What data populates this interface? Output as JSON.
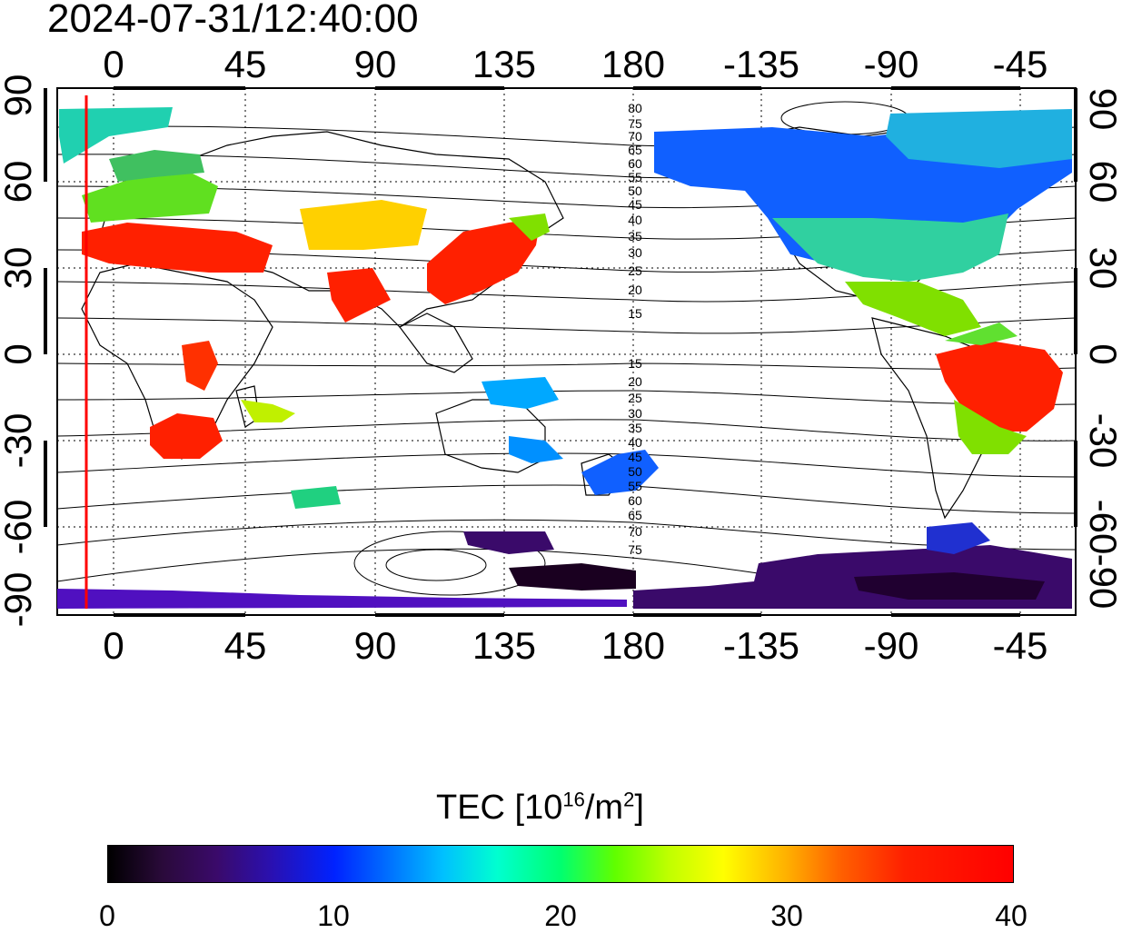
{
  "header": {
    "timestamp": "2024-07-31/12:40:00"
  },
  "map": {
    "lon_ticks_top": [
      "0",
      "45",
      "90",
      "135",
      "180",
      "-135",
      "-90",
      "-45"
    ],
    "lon_ticks_bottom": [
      "0",
      "45",
      "90",
      "135",
      "180",
      "-135",
      "-90",
      "-45"
    ],
    "lat_ticks_left": [
      "90",
      "60",
      "30",
      "0",
      "-30",
      "-60",
      "-90"
    ],
    "lat_ticks_right": [
      "90",
      "60",
      "30",
      "0",
      "-30",
      "-60",
      "-90"
    ],
    "contour_labels_north": [
      "80",
      "75",
      "70",
      "65",
      "60",
      "55",
      "50",
      "45",
      "40",
      "35",
      "30",
      "25",
      "20",
      "15"
    ],
    "contour_labels_south": [
      "15",
      "20",
      "25",
      "30",
      "35",
      "40",
      "45",
      "50",
      "55",
      "60",
      "65",
      "70",
      "75"
    ],
    "marker_line_color": "#ff0000"
  },
  "colorbar": {
    "label_main": "TEC  [10",
    "label_exp1": "16",
    "label_mid": "/m",
    "label_exp2": "2",
    "label_end": "]",
    "ticks": [
      "0",
      "10",
      "20",
      "30",
      "40"
    ],
    "range": [
      0,
      40
    ]
  }
}
